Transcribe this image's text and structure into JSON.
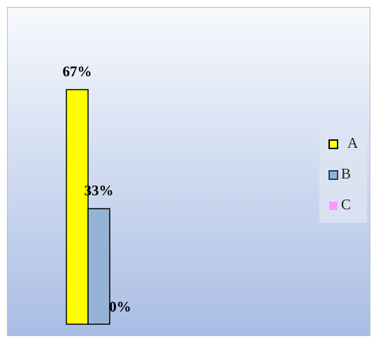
{
  "chart_data": {
    "type": "bar",
    "categories": [
      null
    ],
    "series": [
      {
        "name": "A",
        "color": "#ffff00",
        "values": [
          67
        ],
        "value_labels": [
          "67%"
        ]
      },
      {
        "name": "B",
        "color": "#95b3d7",
        "values": [
          33
        ],
        "value_labels": [
          "33%"
        ]
      },
      {
        "name": "C",
        "color": "#ff99ff",
        "values": [
          0
        ],
        "value_labels": [
          "0%"
        ]
      }
    ],
    "ylim": [
      0,
      80
    ],
    "legend": "right"
  }
}
